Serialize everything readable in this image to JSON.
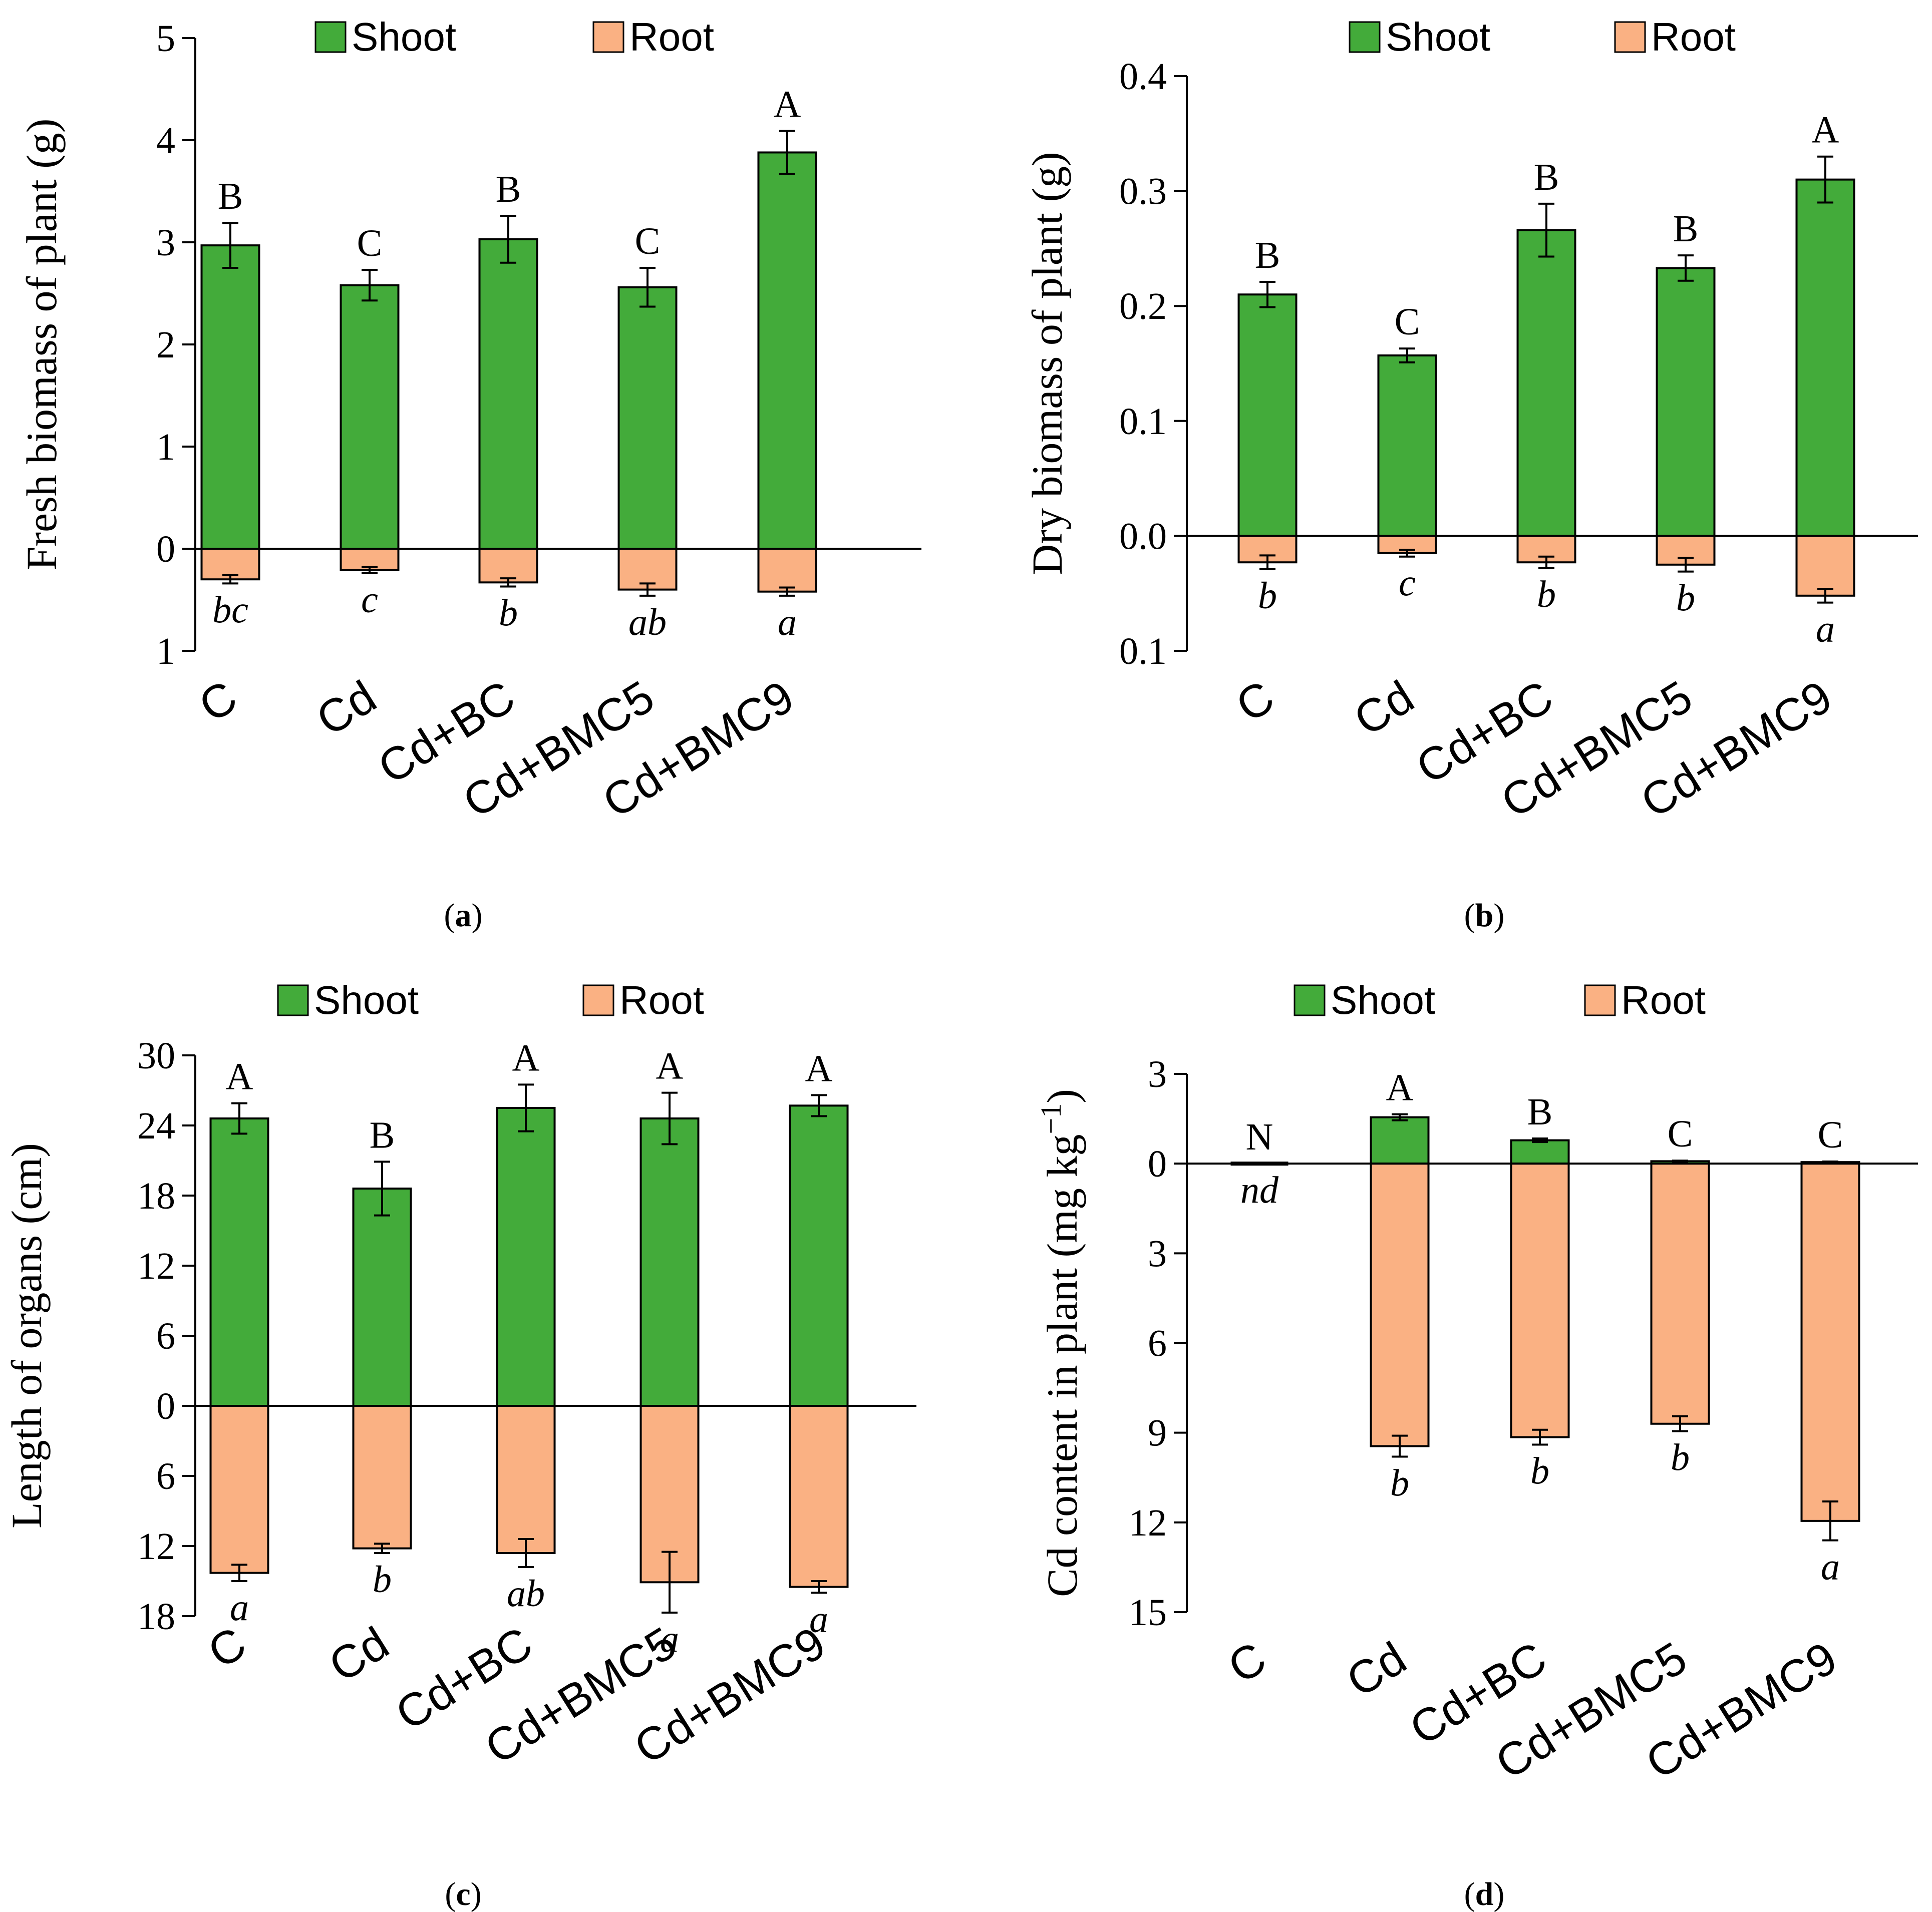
{
  "colors": {
    "shoot": "#43ab3a",
    "root": "#fab183",
    "axis": "#000000"
  },
  "legend": {
    "shoot": "Shoot",
    "root": "Root"
  },
  "categories": [
    "C",
    "Cd",
    "Cd+BC",
    "Cd+BMC5",
    "Cd+BMC9"
  ],
  "chart_data": [
    {
      "id": "a",
      "type": "bar",
      "caption_letter": "a",
      "ylabel": "Fresh biomass of plant (g)",
      "categories": [
        "C",
        "Cd",
        "Cd+BC",
        "Cd+BMC5",
        "Cd+BMC9"
      ],
      "ylim": [
        -1,
        5
      ],
      "y_ticks": [
        5,
        4,
        3,
        2,
        1,
        0,
        -1
      ],
      "y_tick_labels": [
        "5",
        "4",
        "3",
        "2",
        "1",
        "0",
        "1"
      ],
      "series": [
        {
          "name": "Shoot",
          "values": [
            2.97,
            2.58,
            3.03,
            2.56,
            3.88
          ],
          "errors": [
            0.22,
            0.15,
            0.23,
            0.19,
            0.21
          ],
          "letters": [
            "B",
            "C",
            "B",
            "C",
            "A"
          ]
        },
        {
          "name": "Root",
          "values": [
            -0.3,
            -0.21,
            -0.33,
            -0.4,
            -0.42
          ],
          "errors": [
            0.04,
            0.03,
            0.04,
            0.06,
            0.04
          ],
          "letters": [
            "bc",
            "c",
            "b",
            "ab",
            "a"
          ]
        }
      ]
    },
    {
      "id": "b",
      "type": "bar",
      "caption_letter": "b",
      "ylabel": "Dry biomass of plant (g)",
      "categories": [
        "C",
        "Cd",
        "Cd+BC",
        "Cd+BMC5",
        "Cd+BMC9"
      ],
      "ylim": [
        -0.1,
        0.4
      ],
      "y_ticks": [
        0.4,
        0.3,
        0.2,
        0.1,
        0.0,
        -0.1
      ],
      "y_tick_labels": [
        "0.4",
        "0.3",
        "0.2",
        "0.1",
        "0.0",
        "0.1"
      ],
      "series": [
        {
          "name": "Shoot",
          "values": [
            0.21,
            0.157,
            0.266,
            0.233,
            0.31
          ],
          "errors": [
            0.011,
            0.006,
            0.023,
            0.011,
            0.02
          ],
          "letters": [
            "B",
            "C",
            "B",
            "B",
            "A"
          ]
        },
        {
          "name": "Root",
          "values": [
            -0.023,
            -0.015,
            -0.023,
            -0.025,
            -0.052
          ],
          "errors": [
            0.006,
            0.003,
            0.005,
            0.006,
            0.006
          ],
          "letters": [
            "b",
            "c",
            "b",
            "b",
            "a"
          ]
        }
      ]
    },
    {
      "id": "c",
      "type": "bar",
      "caption_letter": "c",
      "ylabel": "Length of organs (cm)",
      "categories": [
        "C",
        "Cd",
        "Cd+BC",
        "Cd+BMC5",
        "Cd+BMC9"
      ],
      "ylim": [
        -18,
        30
      ],
      "y_ticks": [
        30,
        24,
        18,
        12,
        6,
        0,
        -6,
        -12,
        -18
      ],
      "y_tick_labels": [
        "30",
        "24",
        "18",
        "12",
        "6",
        "0",
        "6",
        "12",
        "18"
      ],
      "series": [
        {
          "name": "Shoot",
          "values": [
            24.6,
            18.6,
            25.5,
            24.6,
            25.7
          ],
          "errors": [
            1.3,
            2.3,
            2.0,
            2.2,
            0.9
          ],
          "letters": [
            "A",
            "B",
            "A",
            "A",
            "A"
          ]
        },
        {
          "name": "Root",
          "values": [
            -14.3,
            -12.2,
            -12.6,
            -15.1,
            -15.5
          ],
          "errors": [
            0.7,
            0.4,
            1.2,
            2.6,
            0.5
          ],
          "letters": [
            "a",
            "b",
            "ab",
            "a",
            "a"
          ]
        }
      ]
    },
    {
      "id": "d",
      "type": "bar",
      "caption_letter": "d",
      "ylabel": "Cd content in plant (mg kg",
      "ylabel_sup": "−1",
      "ylabel_close": ")",
      "categories": [
        "C",
        "Cd",
        "Cd+BC",
        "Cd+BMC5",
        "Cd+BMC9"
      ],
      "ylim": [
        -15,
        3
      ],
      "y_ticks": [
        3,
        0,
        -3,
        -6,
        -9,
        -12,
        -15
      ],
      "y_tick_labels": [
        "3",
        "0",
        "3",
        "6",
        "9",
        "12",
        "15"
      ],
      "series": [
        {
          "name": "Shoot",
          "values": [
            0.0,
            1.55,
            0.78,
            0.08,
            0.05
          ],
          "errors": [
            0.0,
            0.1,
            0.06,
            0.02,
            0.02
          ],
          "letters": [
            "N",
            "A",
            "B",
            "C",
            "C"
          ]
        },
        {
          "name": "Root",
          "values": [
            0.0,
            -9.45,
            -9.15,
            -8.7,
            -11.95
          ],
          "errors": [
            0.0,
            0.35,
            0.25,
            0.25,
            0.65
          ],
          "letters": [
            "nd",
            "b",
            "b",
            "b",
            "a"
          ]
        }
      ]
    }
  ]
}
